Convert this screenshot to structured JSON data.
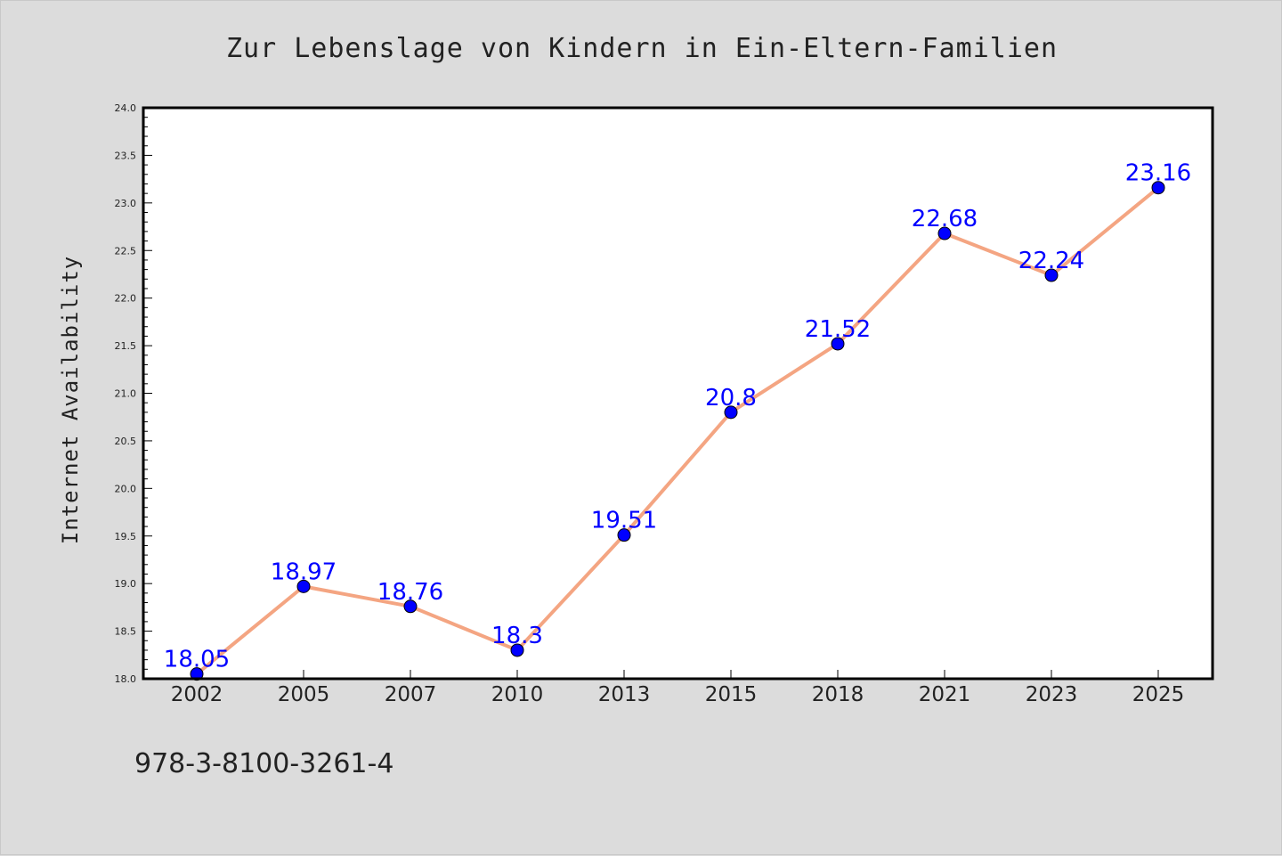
{
  "chart_data": {
    "type": "line",
    "title": "Zur Lebenslage von Kindern in Ein-Eltern-Familien",
    "xlabel": "",
    "ylabel": "Internet Availability",
    "categories": [
      "2002",
      "2005",
      "2007",
      "2010",
      "2013",
      "2015",
      "2018",
      "2021",
      "2023",
      "2025"
    ],
    "series": [
      {
        "values": [
          18.05,
          18.97,
          18.76,
          18.3,
          19.51,
          20.8,
          21.52,
          22.68,
          22.24,
          23.16
        ],
        "data_labels": [
          "18.05",
          "18.97",
          "18.76",
          "18.3",
          "19.51",
          "20.8",
          "21.52",
          "22.68",
          "22.24",
          "23.16"
        ],
        "line_color": "#f4a582",
        "marker_color": "#0000ff",
        "label_color": "#0000ff"
      }
    ],
    "ylim": [
      18.0,
      24.0
    ],
    "y_ticks": [
      "18.0",
      "18.5",
      "19.0",
      "19.5",
      "20.0",
      "20.5",
      "21.0",
      "21.5",
      "22.0",
      "22.5",
      "23.0",
      "23.5",
      "24.0"
    ],
    "grid": false,
    "legend": "none"
  },
  "footnote": "978-3-8100-3261-4",
  "colors": {
    "background": "#dcdcdc",
    "plot_background": "#ffffff",
    "axis": "#000000"
  }
}
